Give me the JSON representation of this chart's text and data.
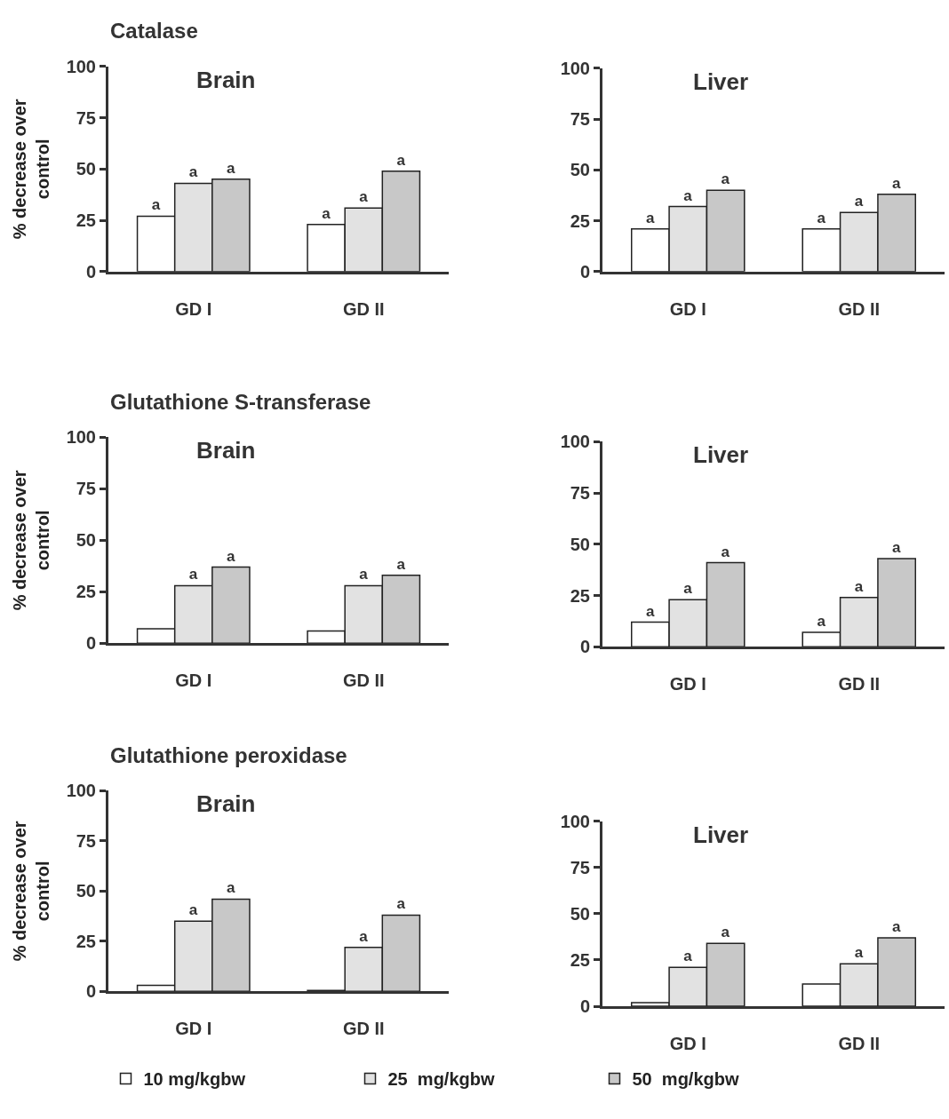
{
  "chart_data": [
    {
      "type": "bar",
      "title": "Catalase",
      "subtitle": "Brain",
      "ylabel": "% decrease over control",
      "categories": [
        "GD I",
        "GD II"
      ],
      "ylim": [
        0,
        100
      ],
      "yticks": [
        0,
        25,
        50,
        75,
        100
      ],
      "legend": false,
      "series": [
        {
          "color": "#ffffff",
          "values": [
            27,
            23
          ],
          "value_labels": [
            "a",
            "a"
          ]
        },
        {
          "color": "#e2e2e2",
          "values": [
            43,
            31
          ],
          "value_labels": [
            "a",
            "a"
          ]
        },
        {
          "color": "#c8c8c8",
          "values": [
            45,
            49
          ],
          "value_labels": [
            "a",
            "a"
          ]
        }
      ]
    },
    {
      "type": "bar",
      "subtitle": "Liver",
      "categories": [
        "GD I",
        "GD II"
      ],
      "ylim": [
        0,
        100
      ],
      "yticks": [
        0,
        25,
        50,
        75,
        100
      ],
      "legend": false,
      "series": [
        {
          "color": "#ffffff",
          "values": [
            21,
            21
          ],
          "value_labels": [
            "a",
            "a"
          ]
        },
        {
          "color": "#e2e2e2",
          "values": [
            32,
            29
          ],
          "value_labels": [
            "a",
            "a"
          ]
        },
        {
          "color": "#c8c8c8",
          "values": [
            40,
            38
          ],
          "value_labels": [
            "a",
            "a"
          ]
        }
      ]
    },
    {
      "type": "bar",
      "title": "Glutathione S-transferase",
      "subtitle": "Brain",
      "ylabel": "% decrease over control",
      "categories": [
        "GD I",
        "GD II"
      ],
      "ylim": [
        0,
        100
      ],
      "yticks": [
        0,
        25,
        50,
        75,
        100
      ],
      "legend": false,
      "series": [
        {
          "color": "#ffffff",
          "values": [
            7,
            6
          ],
          "value_labels": [
            null,
            null
          ]
        },
        {
          "color": "#e2e2e2",
          "values": [
            28,
            28
          ],
          "value_labels": [
            "a",
            "a"
          ]
        },
        {
          "color": "#c8c8c8",
          "values": [
            37,
            33
          ],
          "value_labels": [
            "a",
            "a"
          ]
        }
      ]
    },
    {
      "type": "bar",
      "subtitle": "Liver",
      "categories": [
        "GD I",
        "GD II"
      ],
      "ylim": [
        0,
        100
      ],
      "yticks": [
        0,
        25,
        50,
        75,
        100
      ],
      "legend": false,
      "series": [
        {
          "color": "#ffffff",
          "values": [
            12,
            7
          ],
          "value_labels": [
            "a",
            "a"
          ]
        },
        {
          "color": "#e2e2e2",
          "values": [
            23,
            24
          ],
          "value_labels": [
            "a",
            "a"
          ]
        },
        {
          "color": "#c8c8c8",
          "values": [
            41,
            43
          ],
          "value_labels": [
            "a",
            "a"
          ]
        }
      ]
    },
    {
      "type": "bar",
      "title": "Glutathione peroxidase",
      "subtitle": "Brain",
      "ylabel": "% decrease over control",
      "categories": [
        "GD I",
        "GD II"
      ],
      "ylim": [
        0,
        100
      ],
      "yticks": [
        0,
        25,
        50,
        75,
        100
      ],
      "legend": false,
      "series": [
        {
          "color": "#ffffff",
          "values": [
            3,
            0.5
          ],
          "value_labels": [
            null,
            null
          ]
        },
        {
          "color": "#e2e2e2",
          "values": [
            35,
            22
          ],
          "value_labels": [
            "a",
            "a"
          ]
        },
        {
          "color": "#c8c8c8",
          "values": [
            46,
            38
          ],
          "value_labels": [
            "a",
            "a"
          ]
        }
      ]
    },
    {
      "type": "bar",
      "subtitle": "Liver",
      "categories": [
        "GD I",
        "GD II"
      ],
      "ylim": [
        0,
        100
      ],
      "yticks": [
        0,
        25,
        50,
        75,
        100
      ],
      "legend": "bottom",
      "series": [
        {
          "name": "10 mg/kgbw",
          "color": "#ffffff",
          "values": [
            2,
            12
          ],
          "value_labels": [
            null,
            null
          ]
        },
        {
          "name": "25  mg/kgbw",
          "color": "#e2e2e2",
          "values": [
            21,
            23
          ],
          "value_labels": [
            "a",
            "a"
          ]
        },
        {
          "name": "50  mg/kgbw",
          "color": "#c8c8c8",
          "values": [
            34,
            37
          ],
          "value_labels": [
            "a",
            "a"
          ]
        }
      ]
    }
  ]
}
